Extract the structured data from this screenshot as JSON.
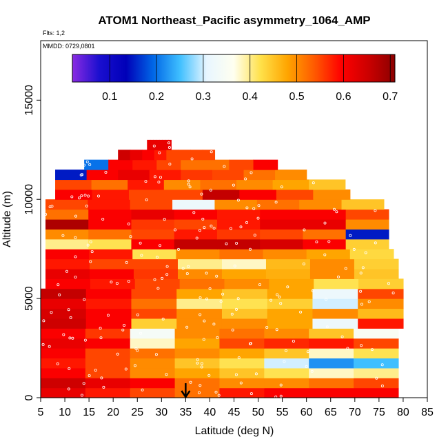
{
  "chart_data": {
    "type": "heatmap",
    "title": "ATOM1 Northeast_Pacific asymmetry_1064_AMP",
    "flights_label": "Flts: 1,2",
    "mmdd_label": "MMDD: 0729,0801",
    "xlabel": "Latitude (deg N)",
    "ylabel": "Altitude (m)",
    "xlim": [
      5,
      85
    ],
    "ylim": [
      0,
      18000
    ],
    "x_ticks": [
      "5",
      "10",
      "15",
      "20",
      "25",
      "30",
      "35",
      "40",
      "45",
      "50",
      "55",
      "60",
      "65",
      "70",
      "75",
      "80",
      "85"
    ],
    "y_ticks": [
      "0",
      "5000",
      "10000",
      "15000"
    ],
    "colorbar": {
      "range": [
        0.02,
        0.71
      ],
      "ticks": [
        "0.1",
        "0.2",
        "0.3",
        "0.4",
        "0.5",
        "0.6",
        "0.7"
      ],
      "colors": [
        "#8a2be2",
        "#1a0fcf",
        "#0000b8",
        "#0066e6",
        "#3fbfff",
        "#e8f6ff",
        "#fffff0",
        "#ffe14a",
        "#ffa500",
        "#ff5a00",
        "#ff0000",
        "#cc0000",
        "#8b0000"
      ]
    },
    "marker_latitude": 35,
    "bands": [
      {
        "alt_bottom": 0,
        "alt_top": 500,
        "lat_min": 5,
        "lat_max": 79,
        "values": [
          0.62,
          0.58,
          0.55,
          0.52,
          0.58,
          0.6,
          0.6,
          0.6
        ]
      },
      {
        "alt_bottom": 500,
        "alt_top": 1000,
        "lat_min": 5,
        "lat_max": 79,
        "values": [
          0.65,
          0.62,
          0.6,
          0.52,
          0.5,
          0.5,
          0.52,
          0.55
        ]
      },
      {
        "alt_bottom": 1000,
        "alt_top": 1500,
        "lat_min": 5,
        "lat_max": 79,
        "values": [
          0.6,
          0.55,
          0.5,
          0.48,
          0.45,
          0.42,
          0.38,
          0.4
        ]
      },
      {
        "alt_bottom": 1500,
        "alt_top": 2000,
        "lat_min": 5,
        "lat_max": 79,
        "values": [
          0.58,
          0.55,
          0.5,
          0.45,
          0.42,
          0.3,
          0.22,
          0.25
        ]
      },
      {
        "alt_bottom": 2000,
        "alt_top": 2500,
        "lat_min": 5,
        "lat_max": 79,
        "values": [
          0.6,
          0.55,
          0.52,
          0.5,
          0.48,
          0.45,
          0.38,
          0.42
        ]
      },
      {
        "alt_bottom": 2500,
        "alt_top": 3000,
        "lat_min": 5,
        "lat_max": 79,
        "values": [
          0.62,
          0.6,
          0.38,
          0.48,
          0.55,
          0.57,
          0.58,
          0.55
        ]
      },
      {
        "alt_bottom": 3000,
        "alt_top": 3500,
        "lat_min": 5,
        "lat_max": 79,
        "values": [
          0.6,
          0.56,
          0.34,
          0.5,
          0.52,
          0.5,
          0.45,
          0.35
        ]
      },
      {
        "alt_bottom": 3500,
        "alt_top": 4000,
        "lat_min": 5,
        "lat_max": 80,
        "values": [
          0.65,
          0.6,
          0.44,
          0.5,
          0.5,
          0.48,
          0.32,
          0.58
        ]
      },
      {
        "alt_bottom": 4000,
        "alt_top": 4500,
        "lat_min": 5,
        "lat_max": 80,
        "values": [
          0.64,
          0.6,
          0.55,
          0.5,
          0.45,
          0.48,
          0.5,
          0.46
        ]
      },
      {
        "alt_bottom": 4500,
        "alt_top": 5000,
        "lat_min": 5,
        "lat_max": 80,
        "values": [
          0.62,
          0.58,
          0.52,
          0.4,
          0.42,
          0.44,
          0.3,
          0.5
        ]
      },
      {
        "alt_bottom": 5000,
        "alt_top": 5500,
        "lat_min": 5,
        "lat_max": 80,
        "values": [
          0.66,
          0.6,
          0.55,
          0.48,
          0.45,
          0.48,
          0.32,
          0.55
        ]
      },
      {
        "alt_bottom": 5500,
        "alt_top": 6000,
        "lat_min": 6,
        "lat_max": 80,
        "values": [
          0.6,
          0.58,
          0.55,
          0.52,
          0.5,
          0.48,
          0.42,
          0.44
        ]
      },
      {
        "alt_bottom": 6000,
        "alt_top": 6500,
        "lat_min": 6,
        "lat_max": 79,
        "values": [
          0.62,
          0.6,
          0.56,
          0.5,
          0.48,
          0.47,
          0.5,
          0.45
        ]
      },
      {
        "alt_bottom": 6500,
        "alt_top": 7000,
        "lat_min": 6,
        "lat_max": 79,
        "values": [
          0.58,
          0.55,
          0.55,
          0.4,
          0.38,
          0.46,
          0.5,
          0.44
        ]
      },
      {
        "alt_bottom": 7000,
        "alt_top": 7500,
        "lat_min": 6,
        "lat_max": 78,
        "values": [
          0.6,
          0.58,
          0.42,
          0.5,
          0.52,
          0.5,
          0.48,
          0.43
        ]
      },
      {
        "alt_bottom": 7500,
        "alt_top": 8000,
        "lat_min": 6,
        "lat_max": 77,
        "values": [
          0.4,
          0.42,
          0.6,
          0.66,
          0.66,
          0.64,
          0.6,
          0.44
        ]
      },
      {
        "alt_bottom": 8000,
        "alt_top": 8500,
        "lat_min": 6,
        "lat_max": 77,
        "values": [
          0.5,
          0.52,
          0.55,
          0.58,
          0.56,
          0.55,
          0.52,
          0.15
        ]
      },
      {
        "alt_bottom": 8500,
        "alt_top": 9000,
        "lat_min": 6,
        "lat_max": 77,
        "values": [
          0.68,
          0.6,
          0.56,
          0.55,
          0.58,
          0.62,
          0.62,
          0.5
        ]
      },
      {
        "alt_bottom": 9000,
        "alt_top": 9500,
        "lat_min": 6,
        "lat_max": 77,
        "values": [
          0.52,
          0.6,
          0.62,
          0.6,
          0.58,
          0.6,
          0.6,
          0.55
        ]
      },
      {
        "alt_bottom": 9500,
        "alt_top": 10000,
        "lat_min": 6,
        "lat_max": 76,
        "values": [
          0.55,
          0.58,
          0.55,
          0.32,
          0.5,
          0.52,
          0.5,
          0.45
        ]
      },
      {
        "alt_bottom": 10000,
        "alt_top": 10500,
        "lat_min": 8,
        "lat_max": 69,
        "values": [
          0.6,
          0.58,
          0.55,
          0.55,
          0.66,
          0.6,
          0.55,
          0.5
        ]
      },
      {
        "alt_bottom": 10500,
        "alt_top": 11000,
        "lat_min": 8,
        "lat_max": 68,
        "values": [
          0.55,
          0.52,
          0.58,
          0.5,
          0.52,
          0.5,
          0.48,
          0.45
        ]
      },
      {
        "alt_bottom": 11000,
        "alt_top": 11500,
        "lat_min": 8,
        "lat_max": 60,
        "values": [
          0.15,
          0.6,
          0.62,
          0.58,
          0.56,
          0.55,
          0.52,
          0.5
        ]
      },
      {
        "alt_bottom": 11500,
        "alt_top": 12000,
        "lat_min": 14,
        "lat_max": 54,
        "values": [
          0.2,
          0.6,
          0.58,
          0.55,
          0.52,
          0.52,
          0.55,
          0.6
        ]
      },
      {
        "alt_bottom": 12000,
        "alt_top": 12500,
        "lat_min": 21,
        "lat_max": 41,
        "values": [
          0.65,
          0.62,
          0.6,
          0.58,
          0.55,
          0.55,
          0.55,
          0.55
        ]
      },
      {
        "alt_bottom": 12500,
        "alt_top": 13000,
        "lat_min": 27,
        "lat_max": 32,
        "values": [
          0.62,
          0.62,
          0.62,
          0.62,
          0.62,
          0.62,
          0.62,
          0.62
        ]
      }
    ]
  }
}
